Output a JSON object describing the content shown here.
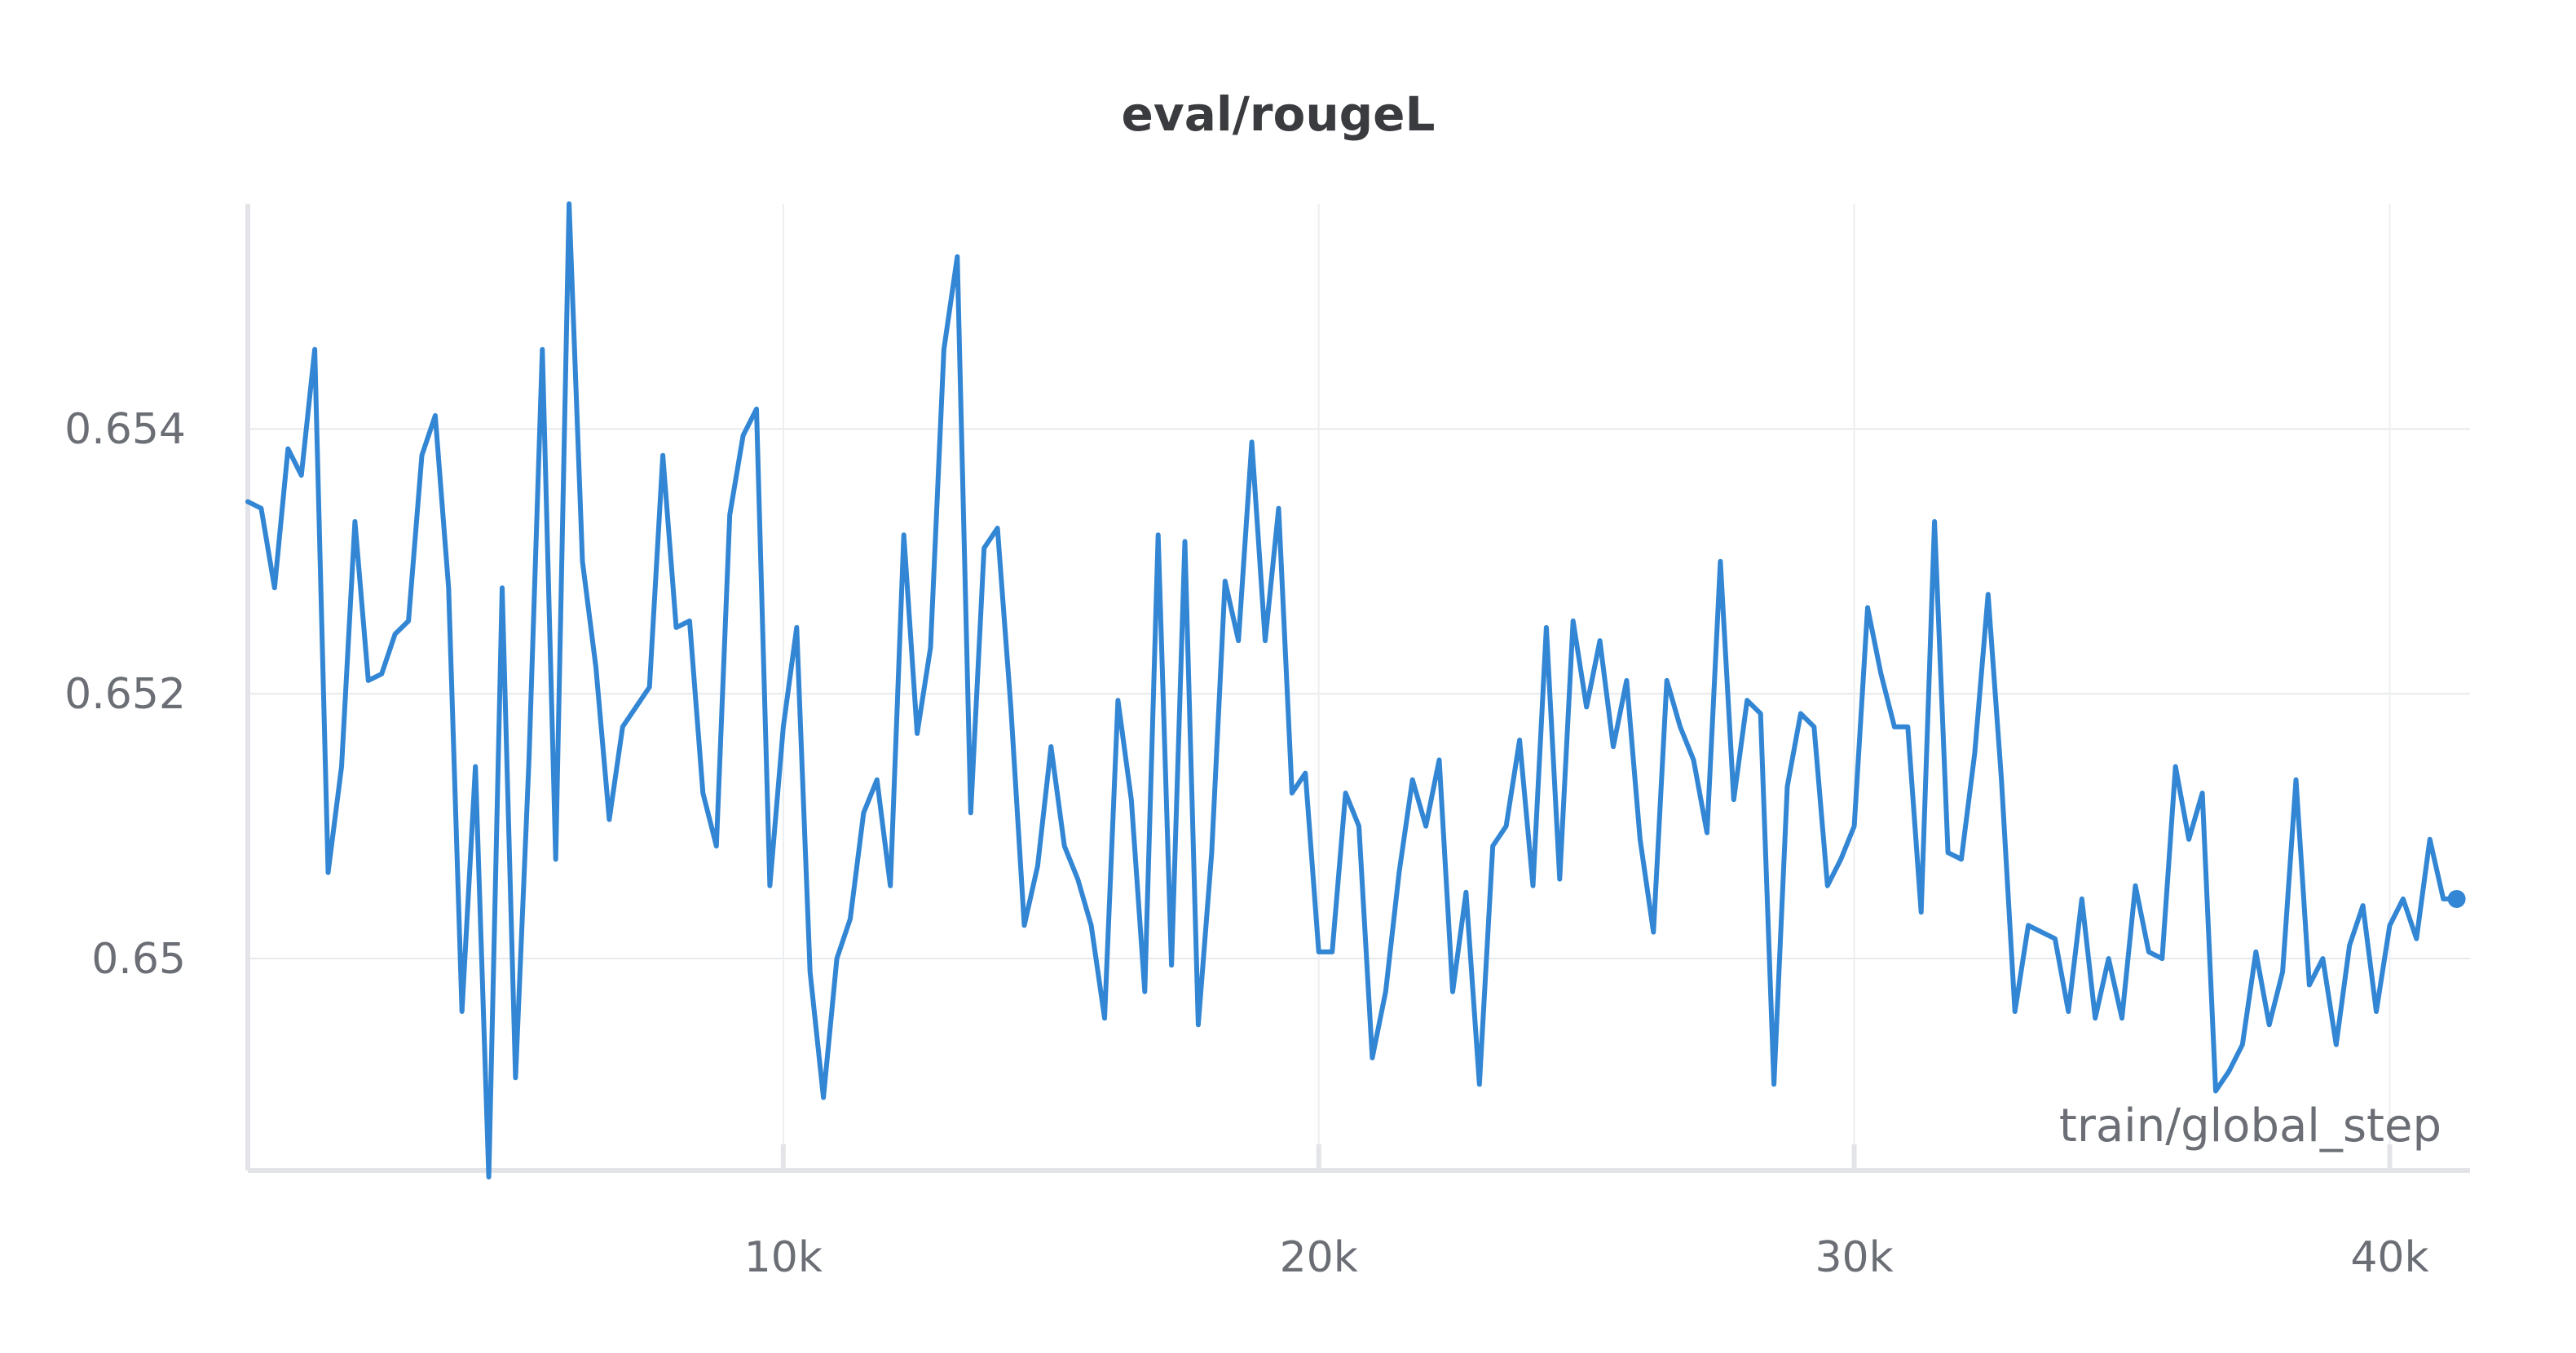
{
  "chart_data": {
    "type": "line",
    "title": "eval/rougeL",
    "xlabel": "train/global_step",
    "ylabel": "",
    "xlim": [
      0,
      41500
    ],
    "ylim": [
      0.6484,
      0.6557
    ],
    "x_ticks": [
      10000,
      20000,
      30000,
      40000
    ],
    "x_tick_labels": [
      "10k",
      "20k",
      "30k",
      "40k"
    ],
    "y_ticks": [
      0.65,
      0.652,
      0.654
    ],
    "y_tick_labels": [
      "0.65",
      "0.652",
      "0.654"
    ],
    "grid": true,
    "series": [
      {
        "name": "eval/rougeL",
        "color": "#3286d4",
        "x": [
          0,
          250,
          500,
          750,
          1000,
          1250,
          1500,
          1750,
          2000,
          2250,
          2500,
          2750,
          3000,
          3250,
          3500,
          3750,
          4000,
          4250,
          4500,
          4750,
          5000,
          5250,
          5500,
          5750,
          6000,
          6250,
          6500,
          6750,
          7000,
          7250,
          7500,
          7750,
          8000,
          8250,
          8500,
          8750,
          9000,
          9250,
          9500,
          9750,
          10000,
          10250,
          10500,
          10750,
          11000,
          11250,
          11500,
          11750,
          12000,
          12250,
          12500,
          12750,
          13000,
          13250,
          13500,
          13750,
          14000,
          14250,
          14500,
          14750,
          15000,
          15250,
          15500,
          15750,
          16000,
          16250,
          16500,
          16750,
          17000,
          17250,
          17500,
          17750,
          18000,
          18250,
          18500,
          18750,
          19000,
          19250,
          19500,
          19750,
          20000,
          20250,
          20500,
          20750,
          21000,
          21250,
          21500,
          21750,
          22000,
          22250,
          22500,
          22750,
          23000,
          23250,
          23500,
          23750,
          24000,
          24250,
          24500,
          24750,
          25000,
          25250,
          25500,
          25750,
          26000,
          26250,
          26500,
          26750,
          27000,
          27250,
          27500,
          27750,
          28000,
          28250,
          28500,
          28750,
          29000,
          29250,
          29500,
          29750,
          30000,
          30250,
          30500,
          30750,
          31000,
          31250,
          31500,
          31750,
          32000,
          32250,
          32500,
          32750,
          33000,
          33250,
          33500,
          33750,
          34000,
          34250,
          34500,
          34750,
          35000,
          35250,
          35500,
          35750,
          36000,
          36250,
          36500,
          36750,
          37000,
          37250,
          37500,
          37750,
          38000,
          38250,
          38500,
          38750,
          39000,
          39250,
          39500,
          39750,
          40000,
          40250,
          40500,
          40750,
          41000,
          41250
        ],
        "y": [
          0.65345,
          0.6534,
          0.6528,
          0.65385,
          0.65365,
          0.6546,
          0.65065,
          0.65145,
          0.6533,
          0.6521,
          0.65215,
          0.65245,
          0.65255,
          0.6538,
          0.6541,
          0.6528,
          0.6496,
          0.65145,
          0.64835,
          0.6528,
          0.6491,
          0.6515,
          0.6546,
          0.65075,
          0.6557,
          0.653,
          0.6522,
          0.65105,
          0.65175,
          0.6519,
          0.65205,
          0.6538,
          0.6525,
          0.65255,
          0.65125,
          0.65085,
          0.65335,
          0.65395,
          0.65415,
          0.65055,
          0.65175,
          0.6525,
          0.6499,
          0.64895,
          0.65,
          0.6503,
          0.6511,
          0.65135,
          0.65055,
          0.6532,
          0.6517,
          0.65235,
          0.6546,
          0.6553,
          0.6511,
          0.6531,
          0.65325,
          0.6519,
          0.65025,
          0.6507,
          0.6516,
          0.65085,
          0.6506,
          0.65025,
          0.64955,
          0.65195,
          0.6512,
          0.64975,
          0.6532,
          0.64995,
          0.65315,
          0.6495,
          0.6508,
          0.65285,
          0.6524,
          0.6539,
          0.6524,
          0.6534,
          0.65125,
          0.6514,
          0.65005,
          0.65005,
          0.65125,
          0.651,
          0.64925,
          0.64975,
          0.65065,
          0.65135,
          0.651,
          0.6515,
          0.64975,
          0.6505,
          0.64905,
          0.65085,
          0.651,
          0.65165,
          0.65055,
          0.6525,
          0.6506,
          0.65255,
          0.6519,
          0.6524,
          0.6516,
          0.6521,
          0.6509,
          0.6502,
          0.6521,
          0.65175,
          0.6515,
          0.65095,
          0.653,
          0.6512,
          0.65195,
          0.65185,
          0.64905,
          0.6513,
          0.65185,
          0.65175,
          0.65055,
          0.65075,
          0.651,
          0.65265,
          0.65215,
          0.65175,
          0.65175,
          0.65035,
          0.6533,
          0.6508,
          0.65075,
          0.65155,
          0.65275,
          0.65135,
          0.6496,
          0.65025,
          0.6502,
          0.65015,
          0.6496,
          0.65045,
          0.64955,
          0.65,
          0.64955,
          0.65055,
          0.65005,
          0.65,
          0.65145,
          0.6509,
          0.65125,
          0.649,
          0.64915,
          0.64935,
          0.65005,
          0.6495,
          0.6499,
          0.65135,
          0.6498,
          0.65,
          0.64935,
          0.6501,
          0.6504,
          0.6496,
          0.65025,
          0.65045,
          0.65015,
          0.6509,
          0.65045,
          0.65045
        ]
      }
    ]
  }
}
